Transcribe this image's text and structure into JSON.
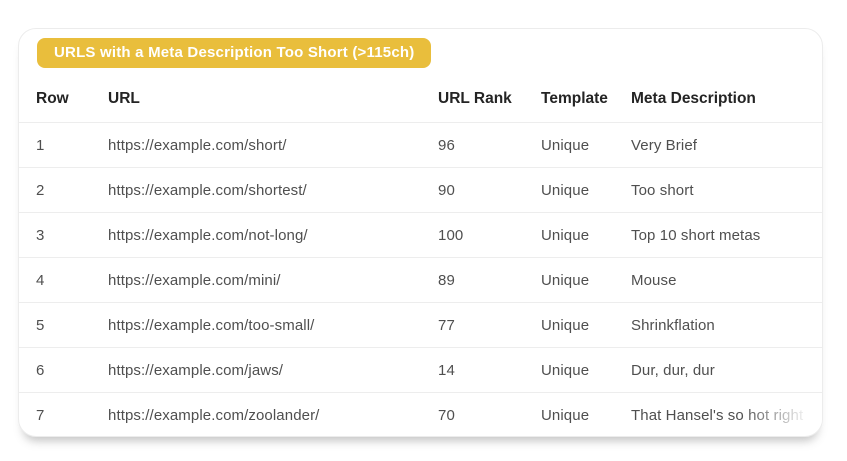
{
  "report": {
    "title": "URLS with a Meta Description Too Short (>115ch)"
  },
  "colors": {
    "badge_bg": "#E9BE3C",
    "badge_text": "#FFFFFF",
    "header_text": "#242424",
    "body_text": "#4F4F4F",
    "separator": "#EDEDED"
  },
  "table": {
    "columns": [
      "Row",
      "URL",
      "URL Rank",
      "Template",
      "Meta Description"
    ],
    "rows": [
      {
        "row": "1",
        "url": "https://example.com/short/",
        "rank": "96",
        "template": "Unique",
        "meta": "Very Brief"
      },
      {
        "row": "2",
        "url": "https://example.com/shortest/",
        "rank": "90",
        "template": "Unique",
        "meta": "Too short"
      },
      {
        "row": "3",
        "url": "https://example.com/not-long/",
        "rank": "100",
        "template": "Unique",
        "meta": "Top 10 short metas"
      },
      {
        "row": "4",
        "url": "https://example.com/mini/",
        "rank": "89",
        "template": "Unique",
        "meta": "Mouse"
      },
      {
        "row": "5",
        "url": "https://example.com/too-small/",
        "rank": "77",
        "template": "Unique",
        "meta": "Shrinkflation"
      },
      {
        "row": "6",
        "url": "https://example.com/jaws/",
        "rank": "14",
        "template": "Unique",
        "meta": "Dur, dur, dur"
      },
      {
        "row": "7",
        "url": "https://example.com/zoolander/",
        "rank": "70",
        "template": "Unique",
        "meta": "That Hansel's so hot right"
      }
    ]
  }
}
